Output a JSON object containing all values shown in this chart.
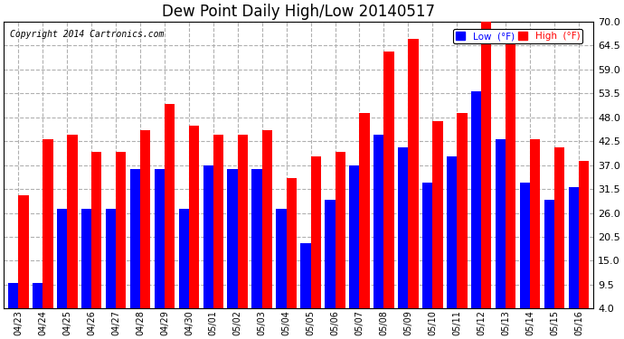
{
  "title": "Dew Point Daily High/Low 20140517",
  "copyright": "Copyright 2014 Cartronics.com",
  "dates": [
    "04/23",
    "04/24",
    "04/25",
    "04/26",
    "04/27",
    "04/28",
    "04/29",
    "04/30",
    "05/01",
    "05/02",
    "05/03",
    "05/04",
    "05/05",
    "05/06",
    "05/07",
    "05/08",
    "05/09",
    "05/10",
    "05/11",
    "05/12",
    "05/13",
    "05/14",
    "05/15",
    "05/16"
  ],
  "low_values": [
    10,
    10,
    27,
    27,
    27,
    36,
    36,
    27,
    37,
    36,
    36,
    27,
    19,
    29,
    37,
    44,
    41,
    33,
    39,
    54,
    43,
    33,
    29,
    32
  ],
  "high_values": [
    30,
    43,
    44,
    40,
    40,
    45,
    51,
    46,
    44,
    44,
    45,
    34,
    39,
    40,
    49,
    63,
    66,
    47,
    49,
    71,
    65,
    43,
    41,
    38
  ],
  "low_color": "#0000ff",
  "high_color": "#ff0000",
  "background_color": "#ffffff",
  "grid_color": "#b0b0b0",
  "ymin": 4.0,
  "ymax": 70.0,
  "yticks": [
    4.0,
    9.5,
    15.0,
    20.5,
    26.0,
    31.5,
    37.0,
    42.5,
    48.0,
    53.5,
    59.0,
    64.5,
    70.0
  ],
  "title_fontsize": 12,
  "copyright_fontsize": 7,
  "legend_low_label": "Low  (°F)",
  "legend_high_label": "High  (°F)"
}
